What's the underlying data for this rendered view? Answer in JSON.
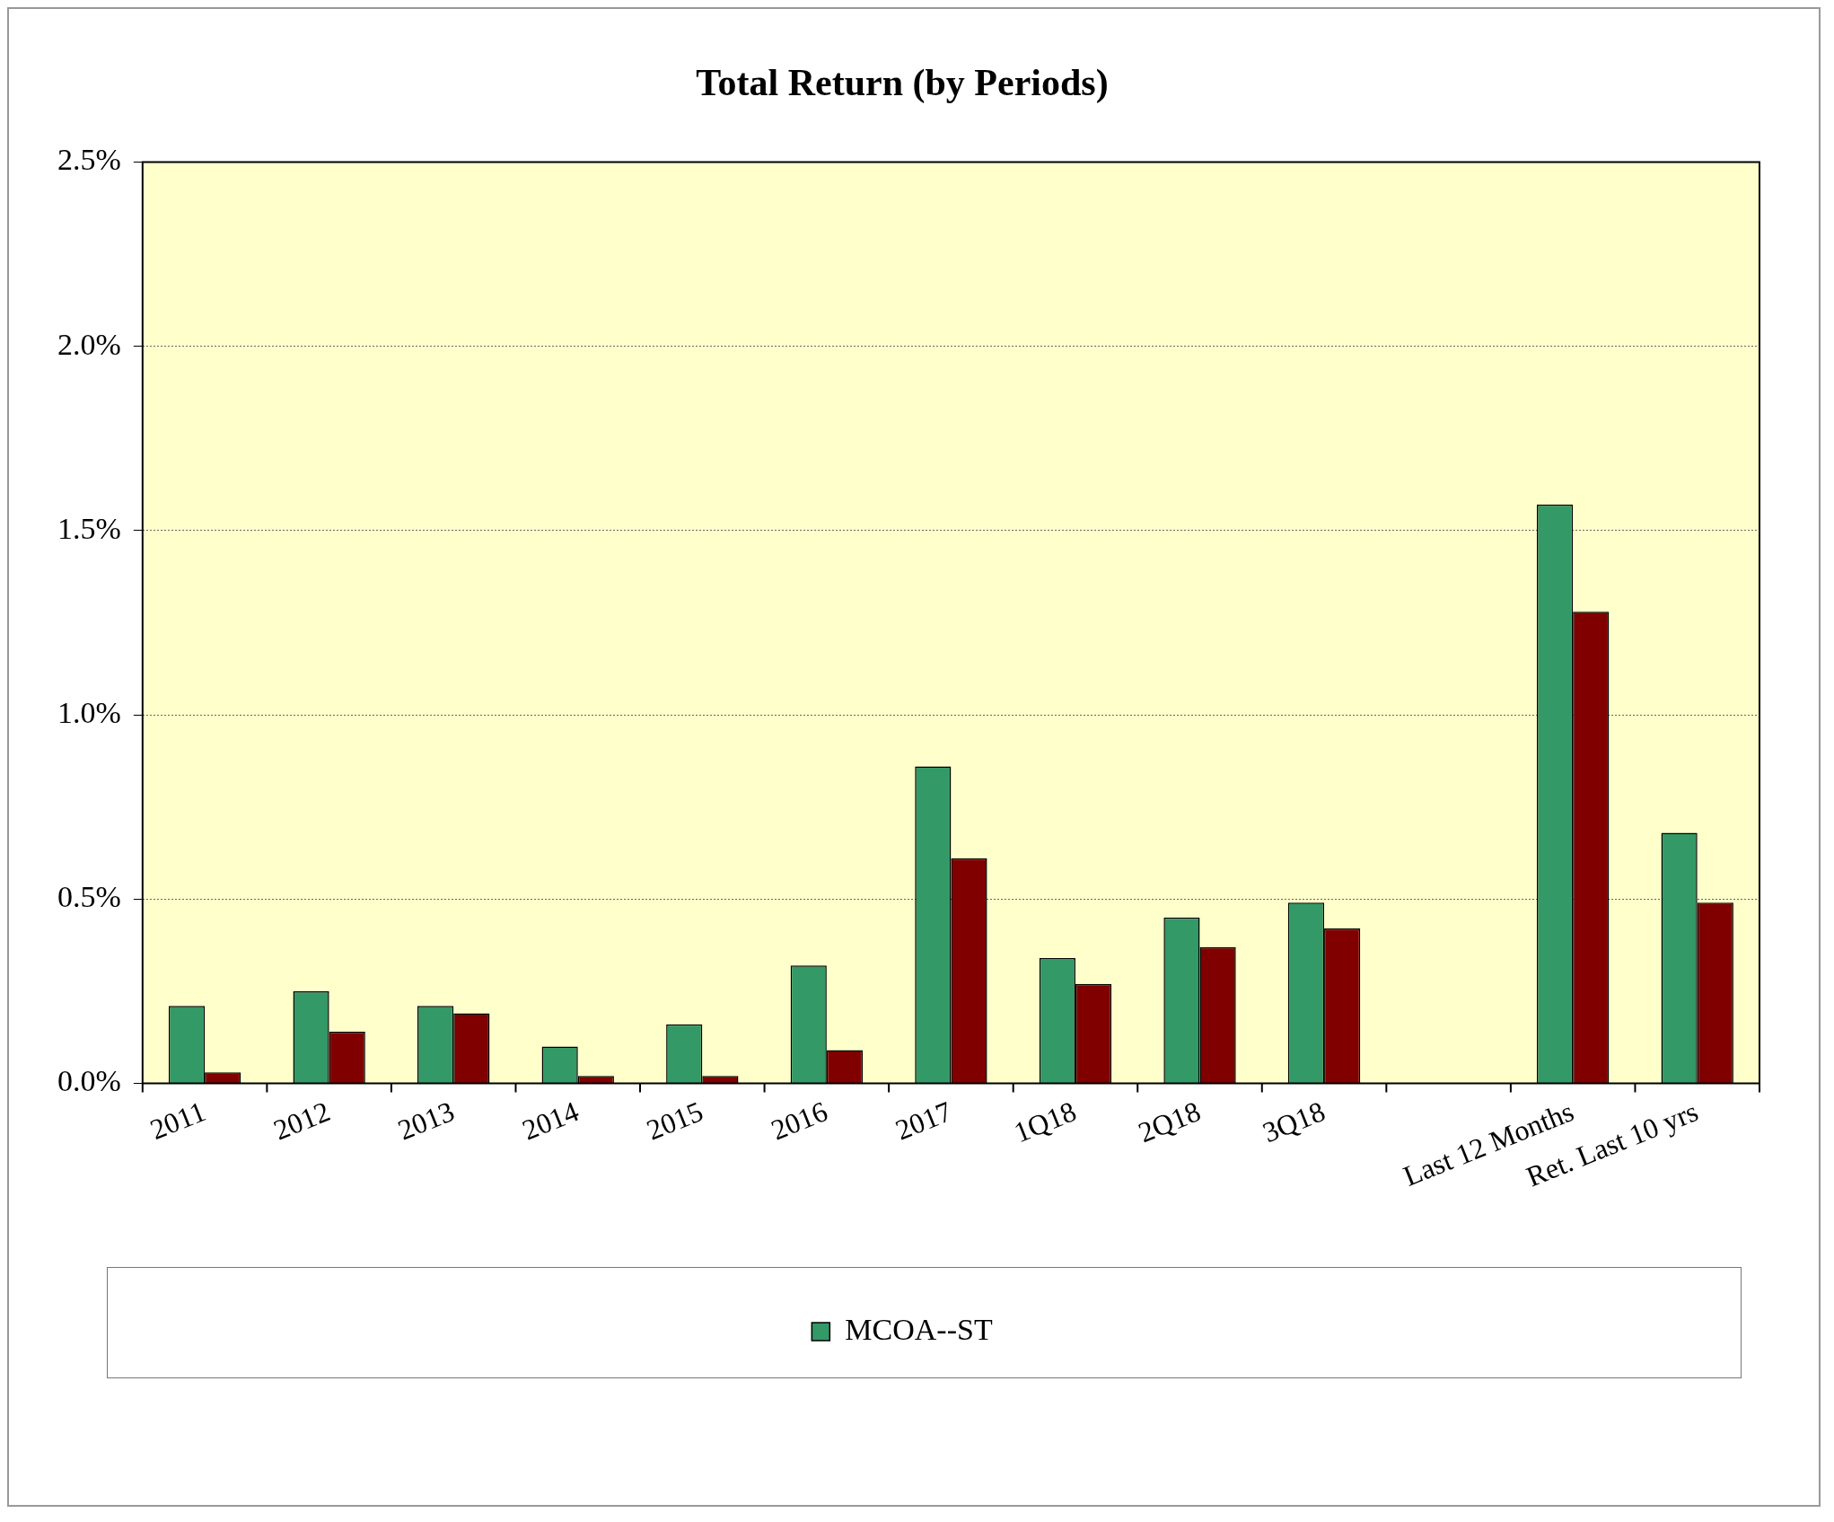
{
  "chart_data": {
    "type": "bar",
    "title": "Total Return (by Periods)",
    "categories": [
      "2011",
      "2012",
      "2013",
      "2014",
      "2015",
      "2016",
      "2017",
      "1Q18",
      "2Q18",
      "3Q18",
      null,
      "Last 12 Months",
      "Ret. Last 10 yrs"
    ],
    "series": [
      {
        "name": "MCOA--ST",
        "color": "#339966",
        "values": [
          0.21,
          0.25,
          0.21,
          0.1,
          0.16,
          0.32,
          0.86,
          0.34,
          0.45,
          0.49,
          null,
          1.57,
          0.68
        ]
      },
      {
        "color": "#800000",
        "values": [
          0.03,
          0.14,
          0.19,
          0.02,
          0.02,
          0.09,
          0.61,
          0.27,
          0.37,
          0.42,
          null,
          1.28,
          0.49
        ]
      }
    ],
    "ylim": [
      0,
      2.5
    ],
    "yticks": [
      {
        "value": 0,
        "label": "0.0%"
      },
      {
        "value": 0.5,
        "label": "0.5%"
      },
      {
        "value": 1,
        "label": "1.0%"
      },
      {
        "value": 1.5,
        "label": "1.5%"
      },
      {
        "value": 2,
        "label": "2.0%"
      },
      {
        "value": 2.5,
        "label": "2.5%"
      }
    ],
    "grid": "y",
    "legend": "bottom"
  }
}
